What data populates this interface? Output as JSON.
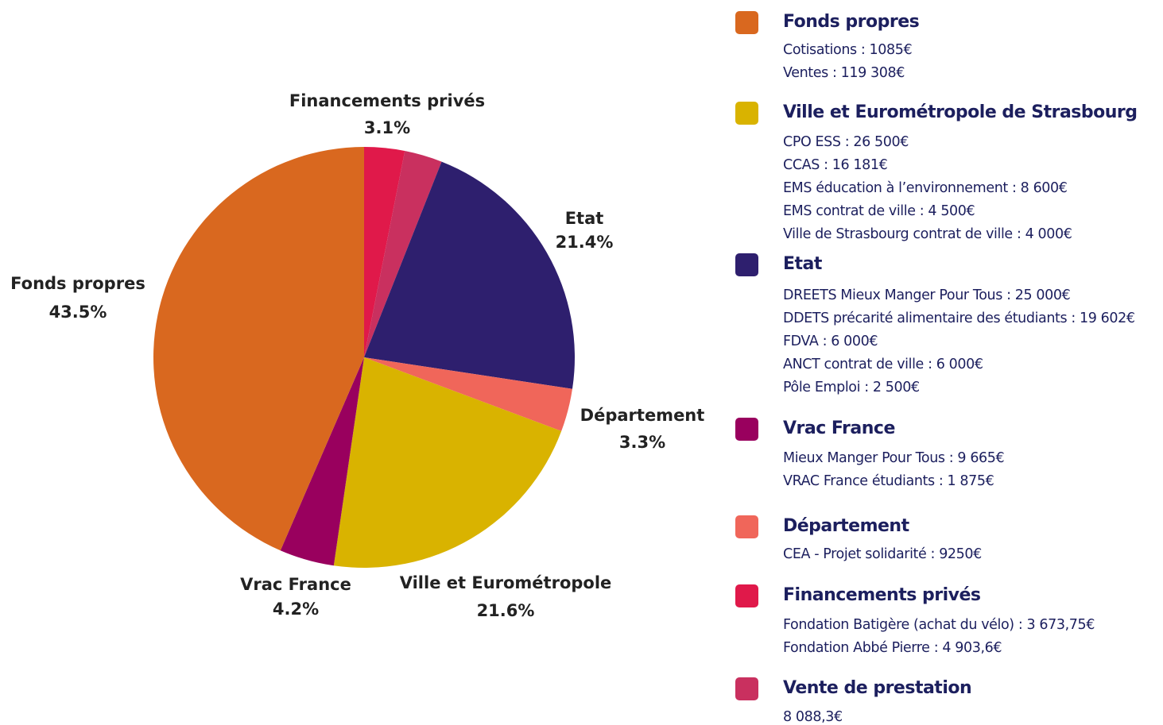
{
  "chart_data": {
    "type": "pie",
    "categories": [
      "Financements privés",
      null,
      "Etat",
      "Département",
      "Ville et Eurométropole",
      "Vrac France",
      "Fonds propres"
    ],
    "values": [
      3.1,
      2.9,
      21.4,
      3.3,
      21.6,
      4.2,
      43.5
    ],
    "value_labels": [
      "3.1%",
      null,
      "21.4%",
      "3.3%",
      "21.6%",
      "4.2%",
      "43.5%"
    ],
    "colors": [
      "#e0194a",
      "#c9305f",
      "#2e1f6e",
      "#f0665a",
      "#d9b300",
      "#99005e",
      "#d9681f"
    ]
  },
  "legend": [
    {
      "title": "Fonds propres",
      "color": "#d9681f",
      "items": [
        "Cotisations : 1085€",
        "Ventes : 119 308€"
      ]
    },
    {
      "title": "Ville et Eurométropole de Strasbourg",
      "color": "#d9b300",
      "items": [
        "CPO ESS : 26 500€",
        "CCAS : 16 181€",
        "EMS éducation à l’environnement : 8 600€",
        "EMS contrat de ville : 4 500€",
        "Ville de Strasbourg contrat de ville : 4 000€"
      ]
    },
    {
      "title": "Etat",
      "color": "#2e1f6e",
      "items": [
        "DREETS Mieux Manger Pour Tous : 25 000€",
        "DDETS précarité alimentaire des étudiants : 19 602€",
        "FDVA : 6 000€",
        "ANCT contrat de ville : 6 000€",
        "Pôle Emploi : 2 500€"
      ]
    },
    {
      "title": "Vrac France",
      "color": "#99005e",
      "items": [
        "Mieux Manger Pour Tous : 9 665€",
        "VRAC France étudiants : 1 875€"
      ]
    },
    {
      "title": "Département",
      "color": "#f0665a",
      "items": [
        "CEA - Projet solidarité : 9250€"
      ]
    },
    {
      "title": "Financements privés",
      "color": "#e0194a",
      "items": [
        "Fondation Batigère (achat du vélo) : 3 673,75€",
        "Fondation Abbé Pierre : 4 903,6€"
      ]
    },
    {
      "title": "Vente de prestation",
      "color": "#c9305f",
      "items": [
        "8 088,3€"
      ]
    }
  ]
}
